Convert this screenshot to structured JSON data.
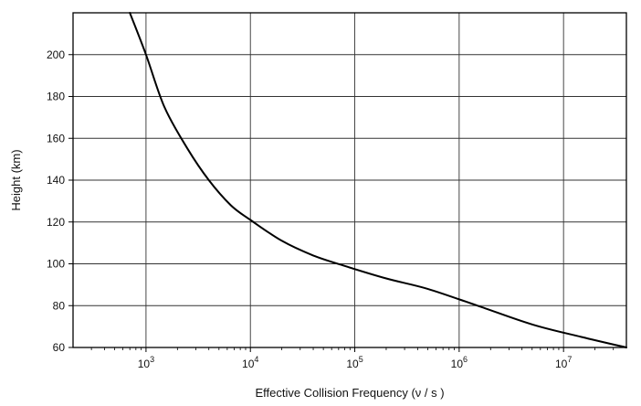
{
  "chart_data": {
    "type": "line",
    "title": "",
    "xlabel": "Effective Collision Frequency (ν / s )",
    "ylabel": "Height (km)",
    "x_scale": "log",
    "xlim": [
      200,
      40000000
    ],
    "ylim": [
      60,
      220
    ],
    "x_ticks": [
      {
        "value": 1000,
        "base": "10",
        "exp": "3"
      },
      {
        "value": 10000,
        "base": "10",
        "exp": "4"
      },
      {
        "value": 100000,
        "base": "10",
        "exp": "5"
      },
      {
        "value": 1000000,
        "base": "10",
        "exp": "6"
      },
      {
        "value": 10000000,
        "base": "10",
        "exp": "7"
      }
    ],
    "y_ticks": [
      60,
      80,
      100,
      120,
      140,
      160,
      180,
      200
    ],
    "grid": true,
    "series": [
      {
        "color": "#000000",
        "points": [
          {
            "x": 700,
            "y": 220
          },
          {
            "x": 1000,
            "y": 200
          },
          {
            "x": 1500,
            "y": 175
          },
          {
            "x": 2500,
            "y": 155
          },
          {
            "x": 4000,
            "y": 140
          },
          {
            "x": 6500,
            "y": 128
          },
          {
            "x": 10000,
            "y": 121
          },
          {
            "x": 20000,
            "y": 111
          },
          {
            "x": 40000,
            "y": 104
          },
          {
            "x": 80000,
            "y": 99
          },
          {
            "x": 200000,
            "y": 93
          },
          {
            "x": 500000,
            "y": 88
          },
          {
            "x": 1500000,
            "y": 80
          },
          {
            "x": 5000000,
            "y": 71
          },
          {
            "x": 15000000,
            "y": 65
          },
          {
            "x": 40000000,
            "y": 60
          }
        ]
      }
    ]
  }
}
